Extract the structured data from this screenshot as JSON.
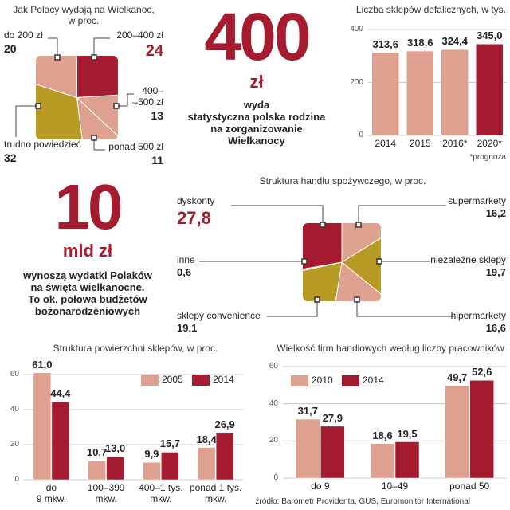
{
  "chart_data": [
    {
      "type": "pie",
      "shape": "square",
      "title": "Jak Polacy wydają na Wielkanoc,\nw proc.",
      "categories": [
        "200–400 zł",
        "400–\n–500 zł",
        "ponad 500 zł",
        "trudno powiedzieć",
        "do 200 zł"
      ],
      "values": [
        24,
        13,
        11,
        32,
        20
      ],
      "colors": [
        "#a51c30",
        "#dea190",
        "#dea190",
        "#b89b25",
        "#dea190"
      ]
    },
    {
      "type": "bar",
      "title": "Liczba sklepów defalicznych, w tys.",
      "categories": [
        "2014",
        "2015",
        "2016*",
        "2020*"
      ],
      "values": [
        313.6,
        318.6,
        324.4,
        345.0
      ],
      "value_labels": [
        "313,6",
        "318,6",
        "324,4",
        "345,0"
      ],
      "colors": [
        "#dea190",
        "#dea190",
        "#dea190",
        "#a51c30"
      ],
      "ylim": [
        0,
        400
      ],
      "yticks": [
        0,
        200,
        400
      ],
      "grid": true,
      "note": "*prognoza"
    },
    {
      "type": "pie",
      "shape": "square",
      "title": "Struktura handlu spożywczego, w proc.",
      "categories": [
        "supermarkety",
        "niezależne sklepy",
        "hipermarkety",
        "sklepy convenience",
        "inne",
        "dyskonty"
      ],
      "values": [
        16.2,
        19.7,
        16.6,
        19.1,
        0.6,
        27.8
      ],
      "value_labels": [
        "16,2",
        "19,7",
        "16,6",
        "19,1",
        "0,6",
        "27,8"
      ],
      "colors": [
        "#dea190",
        "#b89b25",
        "#dea190",
        "#b89b25",
        "#dea190",
        "#a51c30"
      ]
    },
    {
      "type": "bar",
      "title": "Struktura powierzchni sklepów, w proc.",
      "categories": [
        "do\n9 mkw.",
        "100–399\nmkw.",
        "400–1 tys.\nmkw.",
        "ponad 1 tys.\nmkw."
      ],
      "series": [
        {
          "name": "2005",
          "color": "#dea190",
          "values": [
            61.0,
            10.7,
            9.9,
            18.4
          ],
          "value_labels": [
            "61,0",
            "10,7",
            "9,9",
            "18,4"
          ]
        },
        {
          "name": "2014",
          "color": "#a51c30",
          "values": [
            44.4,
            13.0,
            15.7,
            26.9
          ],
          "value_labels": [
            "44,4",
            "13,0",
            "15,7",
            "26,9"
          ]
        }
      ],
      "ylim": [
        0,
        65
      ],
      "yticks": [
        0,
        20,
        40,
        60
      ],
      "grid": true,
      "legend": "top-right"
    },
    {
      "type": "bar",
      "title": "Wielkość firm handlowych według liczby pracowników",
      "categories": [
        "do 9",
        "10–49",
        "ponad 50"
      ],
      "series": [
        {
          "name": "2010",
          "color": "#dea190",
          "values": [
            31.7,
            18.6,
            49.7
          ],
          "value_labels": [
            "31,7",
            "18,6",
            "49,7"
          ]
        },
        {
          "name": "2014",
          "color": "#a51c30",
          "values": [
            27.9,
            19.5,
            52.6
          ],
          "value_labels": [
            "27,9",
            "19,5",
            "52,6"
          ]
        }
      ],
      "ylim": [
        0,
        60
      ],
      "yticks": [
        0,
        20,
        40,
        60
      ],
      "grid": true,
      "legend": "top-left"
    }
  ],
  "highlights": [
    {
      "number": "400",
      "unit": "zł",
      "text": "wyda\nstatystyczna polska rodzina\nna zorganizowanie\nWielkanocy"
    },
    {
      "number": "10",
      "unit": "mld zł",
      "text": "wynoszą wydatki Polaków\nna święta wielkanocne.\nTo ok. połowa budżetów\nbożonarodzeniowych"
    }
  ],
  "source": "źródło: Barometr Providenta, GUS, Euromonitor International"
}
